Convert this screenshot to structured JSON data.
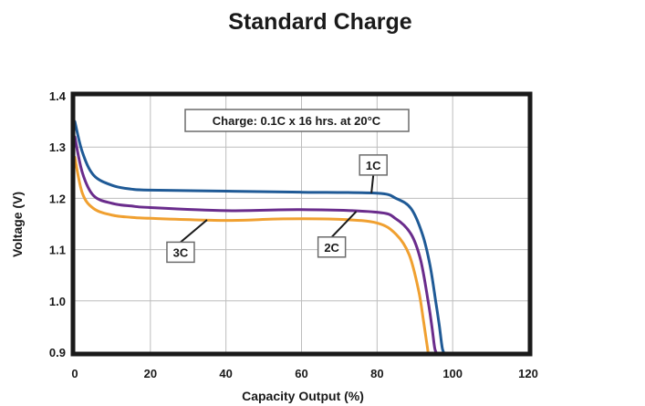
{
  "chart_data": {
    "type": "line",
    "title": "Standard Charge",
    "xlabel": "Capacity Output (%)",
    "ylabel": "Voltage (V)",
    "xlim": [
      0,
      120
    ],
    "ylim": [
      0.9,
      1.4
    ],
    "xticks": [
      0,
      20,
      40,
      60,
      80,
      100,
      120
    ],
    "yticks": [
      0.9,
      1.0,
      1.1,
      1.2,
      1.3,
      1.4
    ],
    "xtick_labels": [
      "0",
      "20",
      "40",
      "60",
      "80",
      "100",
      "120"
    ],
    "ytick_labels": [
      "0.9",
      "1.0",
      "1.1",
      "1.2",
      "1.3",
      "1.4"
    ],
    "grid": true,
    "annotation": "Charge: 0.1C x 16 hrs. at 20°C",
    "series": [
      {
        "name": "1C",
        "color": "#1f5a96",
        "x": [
          0,
          2,
          5,
          10,
          15,
          20,
          40,
          60,
          80,
          85,
          89,
          92,
          94,
          95.5,
          96.5,
          97.2,
          97.6
        ],
        "y": [
          1.35,
          1.29,
          1.245,
          1.225,
          1.218,
          1.216,
          1.214,
          1.212,
          1.21,
          1.2,
          1.18,
          1.13,
          1.07,
          1.0,
          0.95,
          0.91,
          0.9
        ]
      },
      {
        "name": "2C",
        "color": "#6a2c8c",
        "x": [
          0,
          2,
          5,
          10,
          15,
          20,
          40,
          60,
          80,
          85,
          89,
          91.5,
          93.5,
          94.5,
          95.2,
          95.6
        ],
        "y": [
          1.32,
          1.25,
          1.205,
          1.19,
          1.185,
          1.182,
          1.176,
          1.178,
          1.173,
          1.16,
          1.13,
          1.08,
          1.0,
          0.95,
          0.91,
          0.9
        ]
      },
      {
        "name": "3C",
        "color": "#f0a030",
        "x": [
          0,
          2,
          5,
          10,
          15,
          20,
          40,
          55,
          70,
          80,
          85,
          88.5,
          91,
          92.3,
          93.1,
          93.5
        ],
        "y": [
          1.28,
          1.21,
          1.18,
          1.167,
          1.163,
          1.161,
          1.157,
          1.16,
          1.159,
          1.152,
          1.13,
          1.09,
          1.02,
          0.96,
          0.92,
          0.9
        ]
      }
    ],
    "curve_labels": [
      {
        "text": "1C",
        "series": 0,
        "at_x": 78.5,
        "box_x": 79,
        "box_y": 1.265
      },
      {
        "text": "2C",
        "series": 1,
        "at_x": 74.5,
        "box_x": 68,
        "box_y": 1.105
      },
      {
        "text": "3C",
        "series": 2,
        "at_x": 35,
        "box_x": 28,
        "box_y": 1.095
      }
    ]
  }
}
